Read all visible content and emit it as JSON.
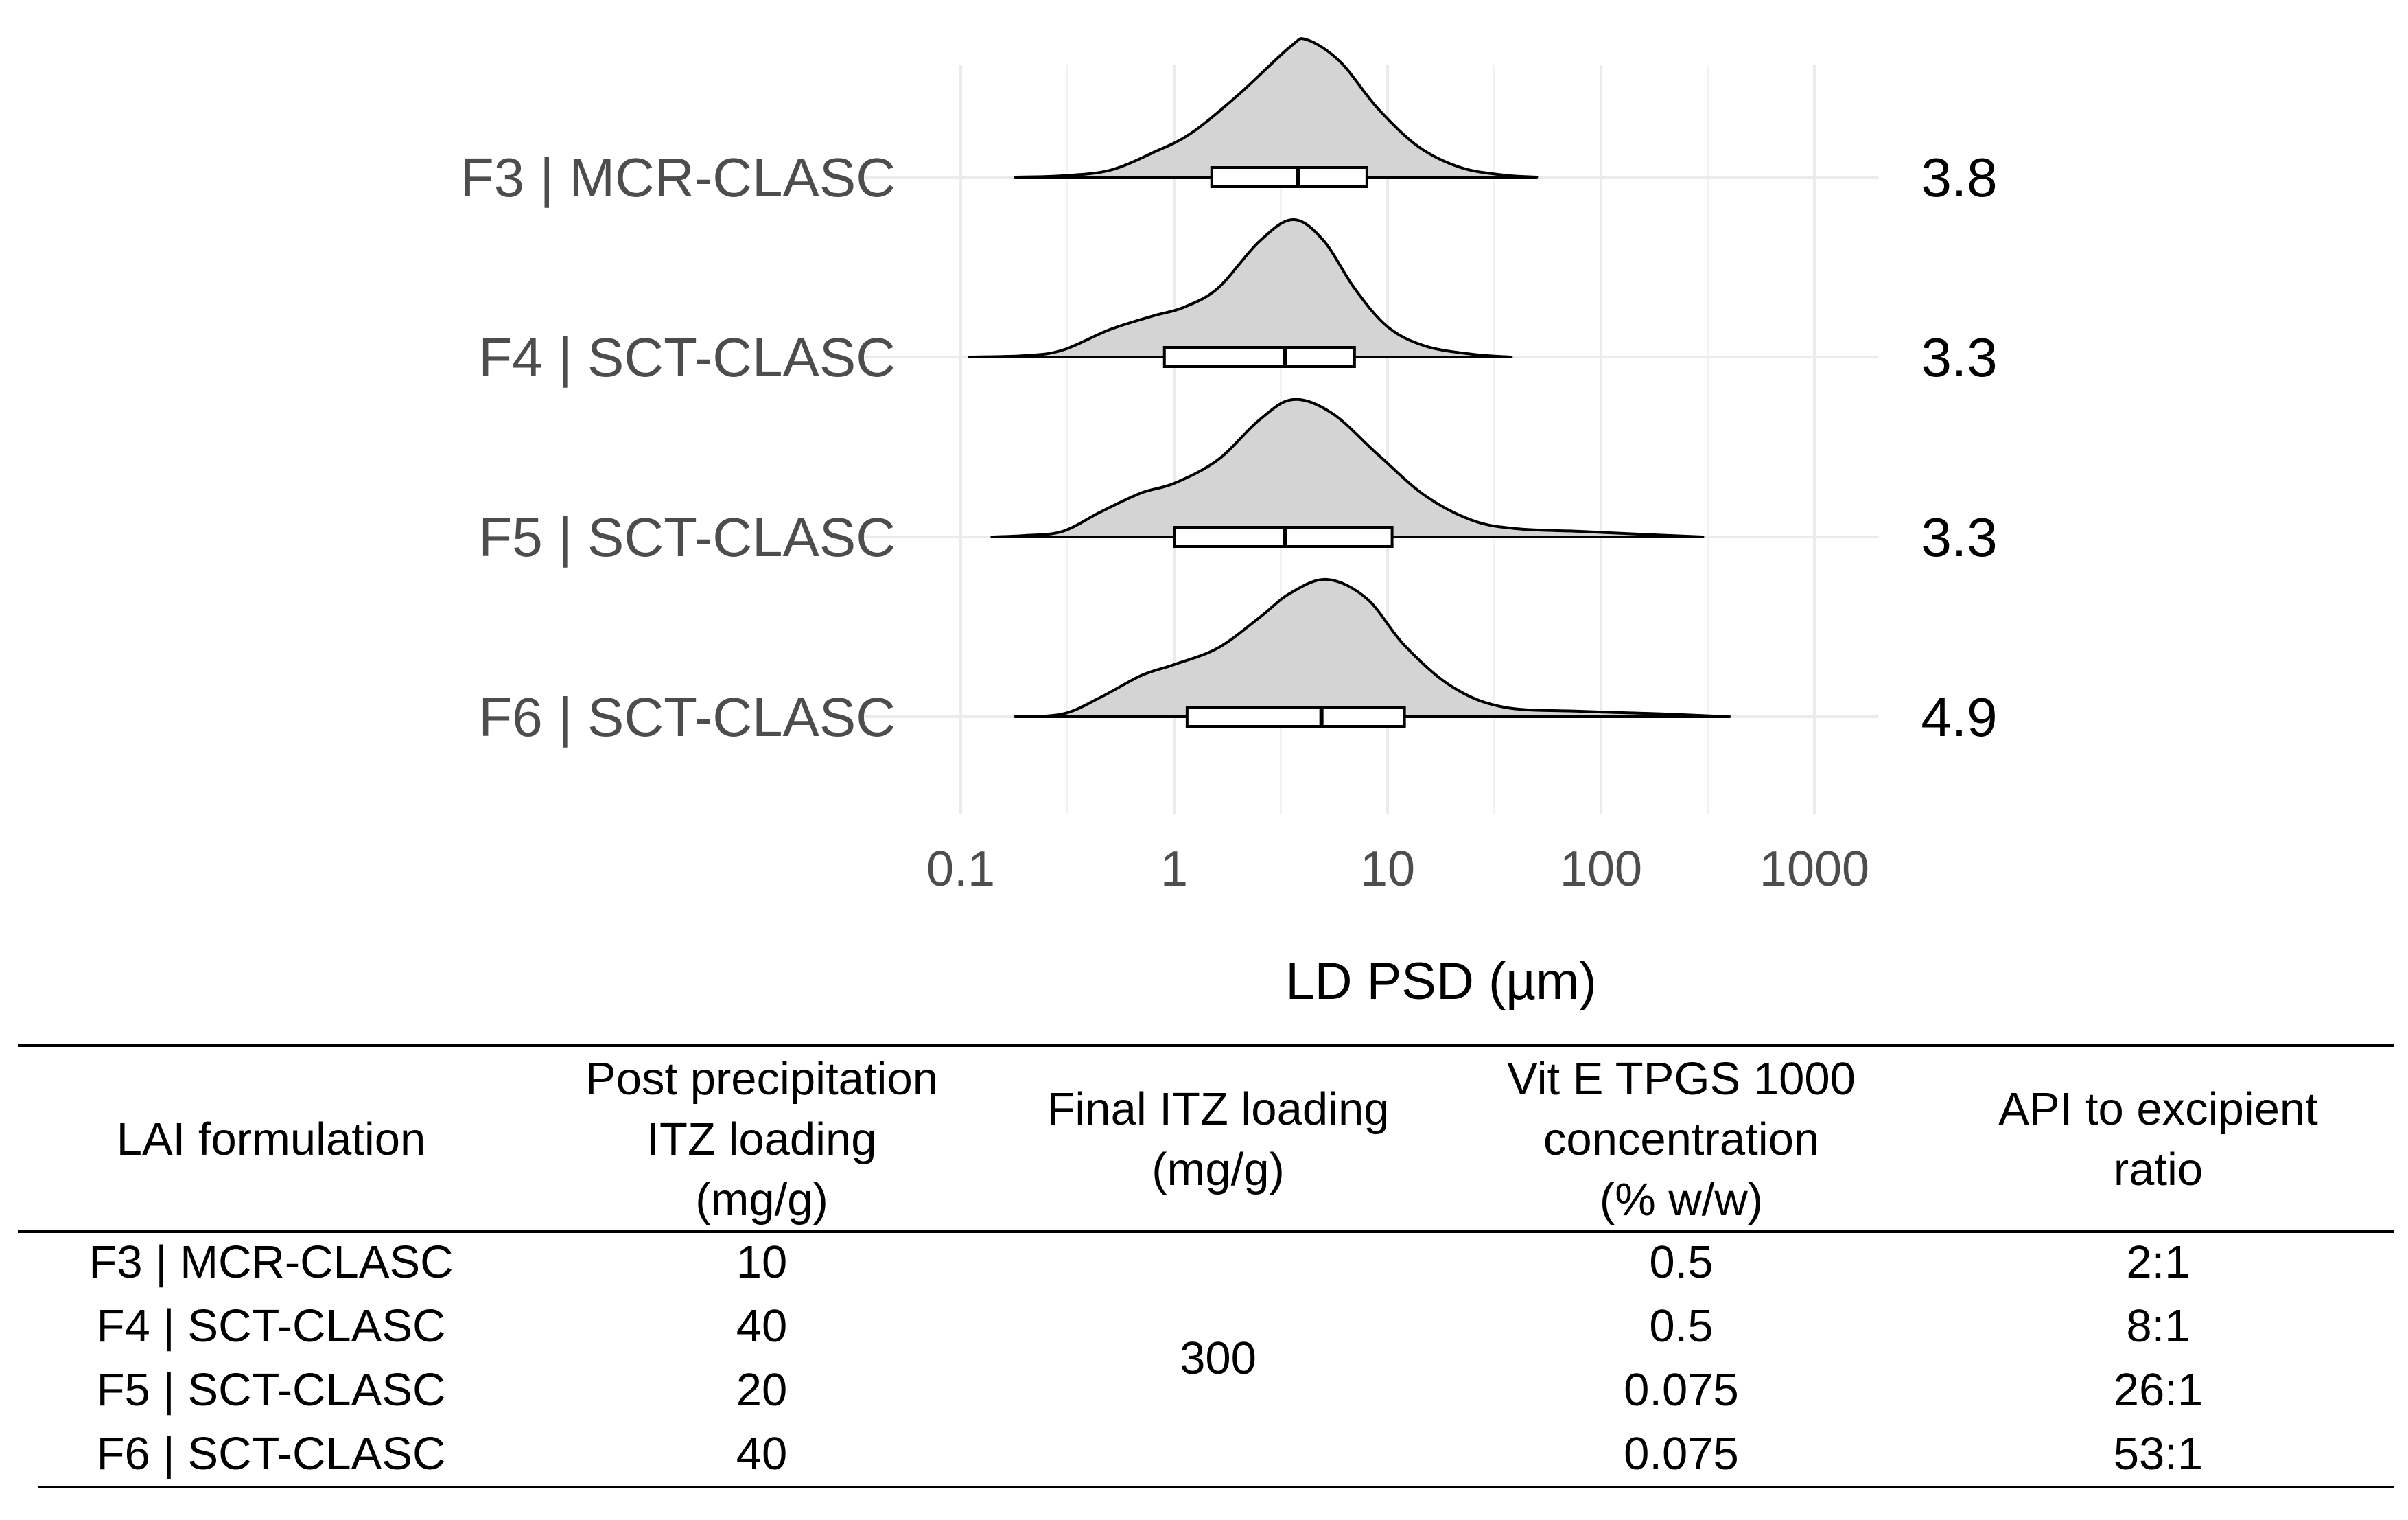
{
  "chart_data": {
    "type": "violin-boxplot",
    "x_scale": "log10",
    "xlim": [
      0.08,
      2000
    ],
    "xlabel": "LD PSD (µm)",
    "x_ticks": [
      {
        "value": 0.1,
        "label": "0.1"
      },
      {
        "value": 1,
        "label": "1"
      },
      {
        "value": 10,
        "label": "10"
      },
      {
        "value": 100,
        "label": "100"
      },
      {
        "value": 1000,
        "label": "1000"
      }
    ],
    "grid": true,
    "fill_color": "#d4d4d4",
    "series": [
      {
        "name": "F3 | MCR-CLASC",
        "median_label": "3.8",
        "median": 3.8,
        "q1": 1.5,
        "q3": 8.0,
        "min": 0.18,
        "max": 50,
        "density": [
          [
            0.18,
            0
          ],
          [
            0.3,
            0.01
          ],
          [
            0.5,
            0.05
          ],
          [
            0.8,
            0.18
          ],
          [
            1.2,
            0.32
          ],
          [
            2,
            0.6
          ],
          [
            3.5,
            0.95
          ],
          [
            4.2,
            1.0
          ],
          [
            6,
            0.84
          ],
          [
            9,
            0.5
          ],
          [
            14,
            0.22
          ],
          [
            22,
            0.07
          ],
          [
            35,
            0.015
          ],
          [
            50,
            0
          ]
        ]
      },
      {
        "name": "F4 | SCT-CLASC",
        "median_label": "3.3",
        "median": 3.3,
        "q1": 0.9,
        "q3": 7.0,
        "min": 0.11,
        "max": 38,
        "density": [
          [
            0.11,
            0
          ],
          [
            0.2,
            0.01
          ],
          [
            0.3,
            0.05
          ],
          [
            0.5,
            0.2
          ],
          [
            0.8,
            0.3
          ],
          [
            1.1,
            0.36
          ],
          [
            1.6,
            0.5
          ],
          [
            2.5,
            0.84
          ],
          [
            3.6,
            1.0
          ],
          [
            5,
            0.85
          ],
          [
            7,
            0.5
          ],
          [
            10,
            0.22
          ],
          [
            15,
            0.08
          ],
          [
            25,
            0.02
          ],
          [
            38,
            0
          ]
        ]
      },
      {
        "name": "F5 | SCT-CLASC",
        "median_label": "3.3",
        "median": 3.3,
        "q1": 1.0,
        "q3": 10.5,
        "min": 0.14,
        "max": 300,
        "density": [
          [
            0.14,
            0
          ],
          [
            0.2,
            0.01
          ],
          [
            0.3,
            0.04
          ],
          [
            0.45,
            0.18
          ],
          [
            0.7,
            0.32
          ],
          [
            1,
            0.39
          ],
          [
            1.6,
            0.56
          ],
          [
            2.5,
            0.85
          ],
          [
            3.6,
            1.0
          ],
          [
            5.5,
            0.9
          ],
          [
            9,
            0.6
          ],
          [
            15,
            0.3
          ],
          [
            25,
            0.12
          ],
          [
            40,
            0.06
          ],
          [
            80,
            0.04
          ],
          [
            150,
            0.02
          ],
          [
            300,
            0
          ]
        ]
      },
      {
        "name": "F6 | SCT-CLASC",
        "median_label": "4.9",
        "median": 4.9,
        "q1": 1.15,
        "q3": 12.0,
        "min": 0.18,
        "max": 400,
        "density": [
          [
            0.18,
            0
          ],
          [
            0.3,
            0.02
          ],
          [
            0.45,
            0.14
          ],
          [
            0.7,
            0.3
          ],
          [
            1,
            0.38
          ],
          [
            1.6,
            0.5
          ],
          [
            2.5,
            0.72
          ],
          [
            3.5,
            0.9
          ],
          [
            5.2,
            1.0
          ],
          [
            8,
            0.86
          ],
          [
            12,
            0.52
          ],
          [
            20,
            0.22
          ],
          [
            35,
            0.07
          ],
          [
            80,
            0.04
          ],
          [
            200,
            0.02
          ],
          [
            400,
            0
          ]
        ]
      }
    ]
  },
  "table": {
    "headers": [
      [
        "LAI formulation"
      ],
      [
        "Post precipitation",
        "ITZ loading",
        "(mg/g)"
      ],
      [
        "Final ITZ loading",
        "(mg/g)"
      ],
      [
        "Vit E TPGS 1000",
        "concentration",
        "(% w/w)"
      ],
      [
        "API to excipient",
        "ratio"
      ]
    ],
    "rows": [
      {
        "formulation": "F3 | MCR-CLASC",
        "post_loading": "10",
        "tpgs": "0.5",
        "ratio": "2:1"
      },
      {
        "formulation": "F4 | SCT-CLASC",
        "post_loading": "40",
        "tpgs": "0.5",
        "ratio": "8:1"
      },
      {
        "formulation": "F5 | SCT-CLASC",
        "post_loading": "20",
        "tpgs": "0.075",
        "ratio": "26:1"
      },
      {
        "formulation": "F6 | SCT-CLASC",
        "post_loading": "40",
        "tpgs": "0.075",
        "ratio": "53:1"
      }
    ],
    "final_loading_merged": "300"
  }
}
